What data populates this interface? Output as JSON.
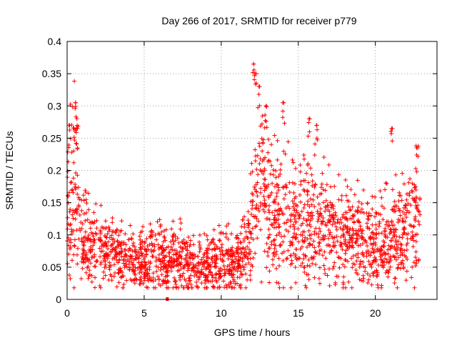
{
  "chart_data": {
    "type": "scatter",
    "title": "Day 266 of 2017, SRMTID for receiver p779",
    "xlabel": "GPS time / hours",
    "ylabel": "SRMTID / TECUs",
    "xlim": [
      0,
      24
    ],
    "ylim": [
      0,
      0.4
    ],
    "xticks": [
      0,
      5,
      10,
      15,
      20
    ],
    "xtick_labels": [
      "0",
      "5",
      "10",
      "15",
      "20"
    ],
    "yticks": [
      0,
      0.05,
      0.1,
      0.15,
      0.2,
      0.25,
      0.3,
      0.35,
      0.4
    ],
    "ytick_labels": [
      "0",
      "0.05",
      "0.1",
      "0.15",
      "0.2",
      "0.25",
      "0.3",
      "0.35",
      "0.4"
    ],
    "grid": true,
    "marker": "+",
    "marker_color": "#ff0000",
    "series": [
      {
        "name": "SRMTID",
        "profile": {
          "x": [
            0,
            0.3,
            0.6,
            0.9,
            1.5,
            2,
            3,
            4,
            5,
            6,
            7,
            8,
            9,
            10,
            11,
            11.6,
            12,
            12.3,
            12.8,
            13.5,
            14,
            15,
            16,
            17,
            18,
            19,
            20,
            21,
            21.5,
            22,
            22.8
          ],
          "y": [
            0.12,
            0.16,
            0.17,
            0.09,
            0.08,
            0.075,
            0.075,
            0.06,
            0.055,
            0.06,
            0.065,
            0.05,
            0.055,
            0.06,
            0.06,
            0.065,
            0.12,
            0.17,
            0.15,
            0.13,
            0.12,
            0.11,
            0.12,
            0.1,
            0.09,
            0.095,
            0.08,
            0.09,
            0.1,
            0.1,
            0.13
          ]
        },
        "peaks": [
          {
            "x": 0.12,
            "y": 0.27
          },
          {
            "x": 0.55,
            "y": 0.305
          },
          {
            "x": 0.62,
            "y": 0.265
          },
          {
            "x": 12.1,
            "y": 0.365
          },
          {
            "x": 12.2,
            "y": 0.35
          },
          {
            "x": 12.45,
            "y": 0.33
          },
          {
            "x": 12.9,
            "y": 0.3
          },
          {
            "x": 14.05,
            "y": 0.305
          },
          {
            "x": 15.7,
            "y": 0.28
          },
          {
            "x": 16.2,
            "y": 0.27
          },
          {
            "x": 21.05,
            "y": 0.265
          },
          {
            "x": 22.75,
            "y": 0.235
          }
        ],
        "outliers": [
          {
            "x": 6.5,
            "y": 0.0
          }
        ],
        "x_range": [
          0,
          22.9
        ],
        "approx_points": 2200
      }
    ]
  }
}
